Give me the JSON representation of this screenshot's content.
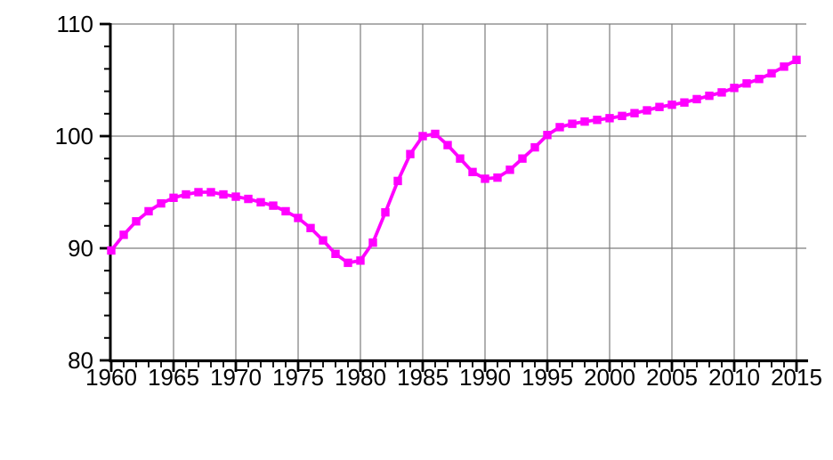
{
  "colors": {
    "background": "#ffffff",
    "line": "#ff00ff",
    "grid": "#7d7d7d",
    "axis": "#000000",
    "tick_label": "#000000"
  },
  "chart_data": {
    "type": "line",
    "title": "",
    "xlabel": "",
    "ylabel": "",
    "legend": "none",
    "grid": true,
    "marker": "filled-square",
    "xlim": [
      1960,
      2016
    ],
    "ylim": [
      80,
      110
    ],
    "xticks_major": [
      1960,
      1965,
      1970,
      1975,
      1980,
      1985,
      1990,
      1995,
      2000,
      2005,
      2010,
      2015
    ],
    "xtick_labels": [
      "1960",
      "1965",
      "1970",
      "1975",
      "1980",
      "1985",
      "1990",
      "1995",
      "2000",
      "2005",
      "2010",
      "2015"
    ],
    "xtick_minor_interval": 1,
    "yticks_major": [
      80,
      90,
      100,
      110
    ],
    "ytick_labels": [
      "80",
      "90",
      "100",
      "110"
    ],
    "ytick_minor_interval": 2,
    "x": [
      1960,
      1961,
      1962,
      1963,
      1964,
      1965,
      1966,
      1967,
      1968,
      1969,
      1970,
      1971,
      1972,
      1973,
      1974,
      1975,
      1976,
      1977,
      1978,
      1979,
      1980,
      1981,
      1982,
      1983,
      1984,
      1985,
      1986,
      1987,
      1988,
      1989,
      1990,
      1991,
      1992,
      1993,
      1994,
      1995,
      1996,
      1997,
      1998,
      1999,
      2000,
      2001,
      2002,
      2003,
      2004,
      2005,
      2006,
      2007,
      2008,
      2009,
      2010,
      2011,
      2012,
      2013,
      2014,
      2015
    ],
    "values": [
      89.8,
      91.2,
      92.4,
      93.3,
      94.0,
      94.5,
      94.8,
      95.0,
      95.0,
      94.8,
      94.6,
      94.4,
      94.1,
      93.8,
      93.3,
      92.7,
      91.8,
      90.7,
      89.5,
      88.7,
      88.9,
      90.5,
      93.2,
      96.0,
      98.4,
      100.0,
      100.2,
      99.2,
      98.0,
      96.8,
      96.2,
      96.3,
      97.0,
      98.0,
      99.0,
      100.1,
      100.8,
      101.1,
      101.3,
      101.45,
      101.6,
      101.8,
      102.05,
      102.3,
      102.6,
      102.8,
      103.0,
      103.3,
      103.6,
      103.9,
      104.3,
      104.7,
      105.1,
      105.6,
      106.2,
      106.8
    ]
  }
}
